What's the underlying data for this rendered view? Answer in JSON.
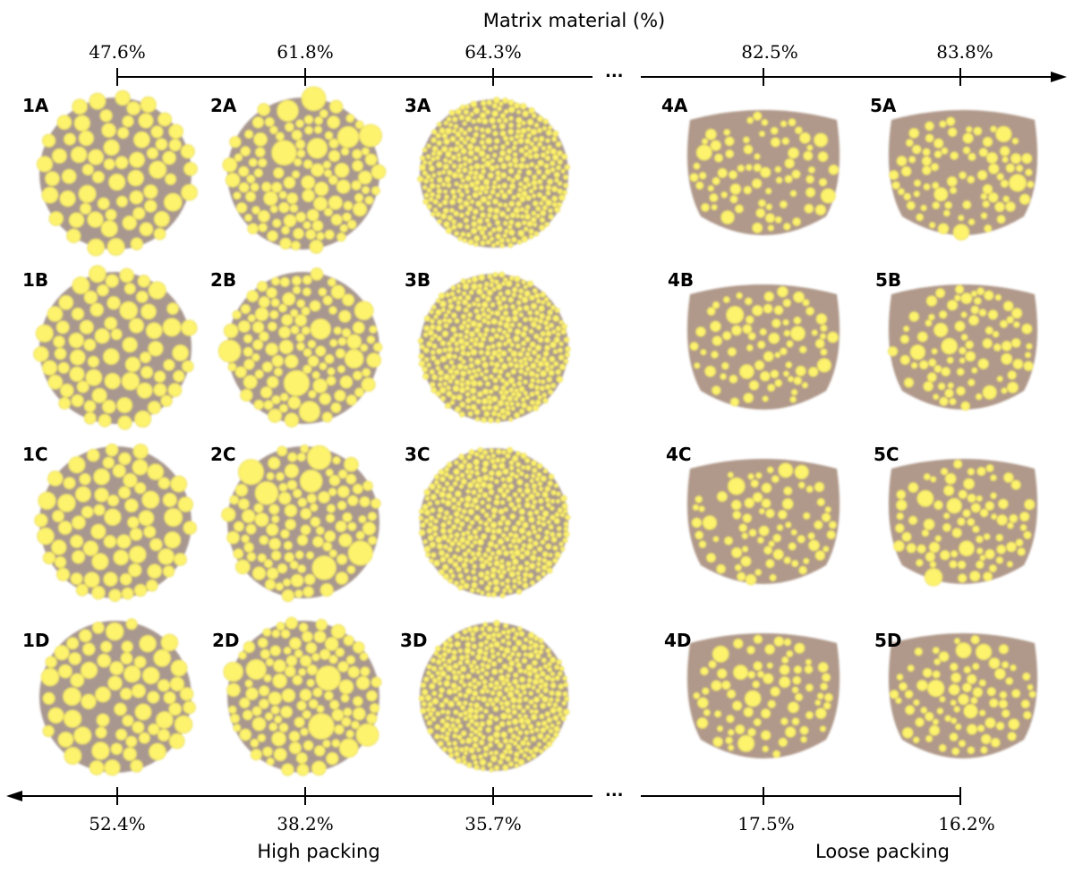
{
  "figure": {
    "top_axis": {
      "title": "Matrix material (%)",
      "ticks": [
        "47.6%",
        "61.8%",
        "64.3%",
        "82.5%",
        "83.8%"
      ]
    },
    "bottom_axis": {
      "ticks": [
        "52.4%",
        "38.2%",
        "35.7%",
        "17.5%",
        "16.2%"
      ],
      "left_caption": "High packing",
      "right_caption": "Loose packing"
    },
    "ellipsis": "...",
    "samples": [
      [
        "1A",
        "2A",
        "3A",
        "4A",
        "5A"
      ],
      [
        "1B",
        "2B",
        "3B",
        "4B",
        "5B"
      ],
      [
        "1C",
        "2C",
        "3C",
        "4C",
        "5C"
      ],
      [
        "1D",
        "2D",
        "3D",
        "4D",
        "5D"
      ]
    ],
    "colors": {
      "matrix_packed": "#a8978f",
      "matrix_loose": "#b0998a",
      "particle": "#fdf36d",
      "particle_edge": "#e8d95a",
      "axis": "#000000"
    }
  }
}
